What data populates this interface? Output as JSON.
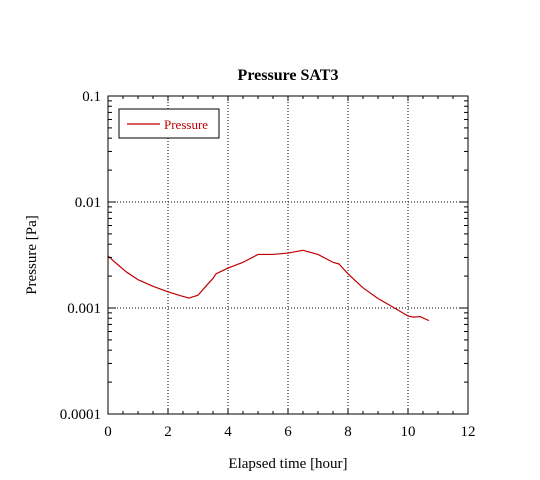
{
  "chart_data": {
    "type": "line",
    "title": "Pressure SAT3",
    "xlabel": "Elapsed time [hour]",
    "ylabel": "Pressure [Pa]",
    "xlim": [
      0,
      12
    ],
    "ylim": [
      0.0001,
      0.1
    ],
    "yscale": "log",
    "grid": true,
    "legend_position": "top-left",
    "x_ticks": [
      0,
      2,
      4,
      6,
      8,
      10,
      12
    ],
    "x_tick_labels": [
      "0",
      "2",
      "4",
      "6",
      "8",
      "10",
      "12"
    ],
    "y_ticks": [
      0.0001,
      0.001,
      0.01,
      0.1
    ],
    "y_tick_labels": [
      "0.0001",
      "0.001",
      "0.01",
      "0.1"
    ],
    "series": [
      {
        "name": "Pressure",
        "color": "#c00000",
        "x": [
          0.0,
          0.3,
          0.6,
          1.0,
          1.5,
          2.0,
          2.4,
          2.7,
          3.0,
          3.3,
          3.5,
          3.6,
          4.0,
          4.5,
          5.0,
          5.5,
          6.0,
          6.5,
          7.0,
          7.5,
          7.7,
          8.0,
          8.5,
          9.0,
          9.5,
          10.0,
          10.2,
          10.4,
          10.7
        ],
        "y": [
          0.0031,
          0.0026,
          0.0022,
          0.00185,
          0.0016,
          0.00142,
          0.00131,
          0.00124,
          0.00132,
          0.00165,
          0.0019,
          0.0021,
          0.00238,
          0.0027,
          0.0032,
          0.0032,
          0.0033,
          0.0035,
          0.0032,
          0.0027,
          0.0026,
          0.0021,
          0.00155,
          0.00123,
          0.00102,
          0.00084,
          0.00082,
          0.00083,
          0.00076
        ]
      }
    ]
  }
}
